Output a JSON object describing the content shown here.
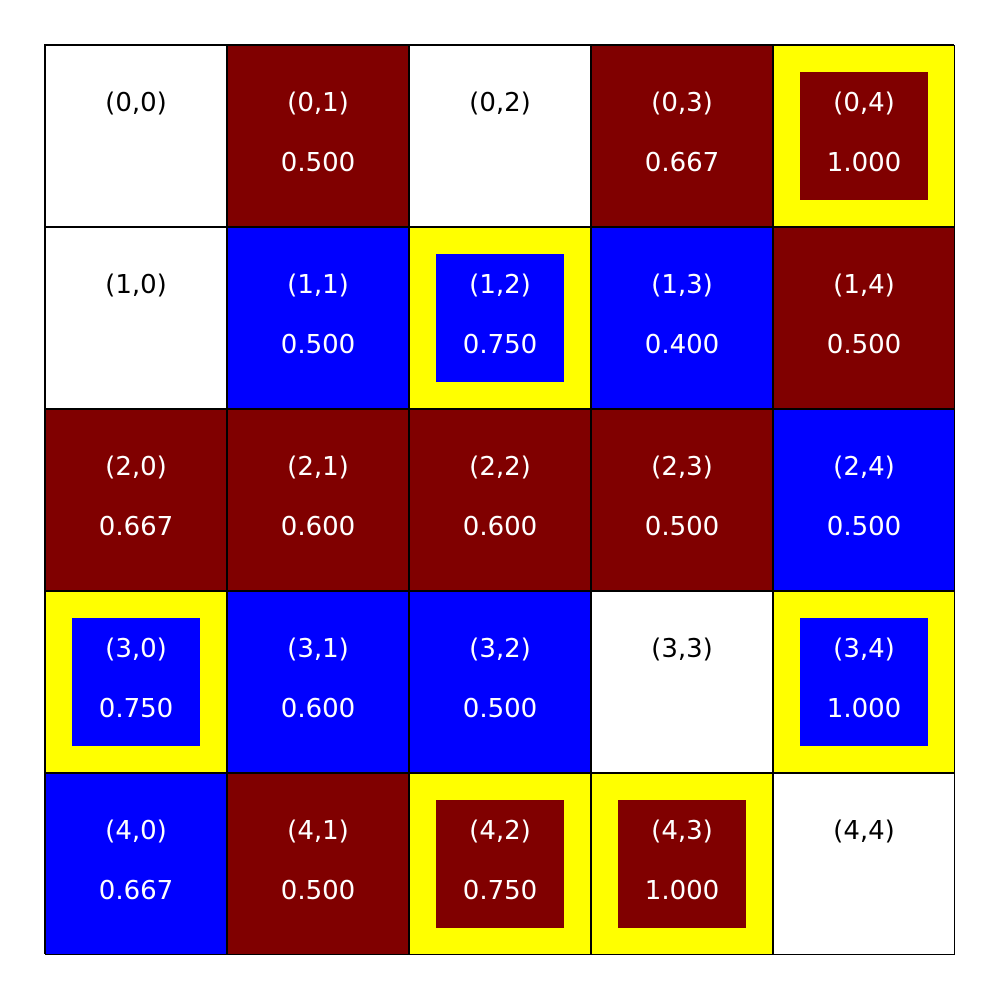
{
  "colors": {
    "white": "#ffffff",
    "red": "#800000",
    "blue": "#0000ff",
    "highlight": "#ffff00",
    "dark_text": "#000000",
    "light_text": "#ffffff"
  },
  "grid": [
    [
      {
        "coord": "(0,0)",
        "value": "",
        "color": "white",
        "highlight": false
      },
      {
        "coord": "(0,1)",
        "value": "0.500",
        "color": "red",
        "highlight": false
      },
      {
        "coord": "(0,2)",
        "value": "",
        "color": "white",
        "highlight": false
      },
      {
        "coord": "(0,3)",
        "value": "0.667",
        "color": "red",
        "highlight": false
      },
      {
        "coord": "(0,4)",
        "value": "1.000",
        "color": "red",
        "highlight": true
      }
    ],
    [
      {
        "coord": "(1,0)",
        "value": "",
        "color": "white",
        "highlight": false
      },
      {
        "coord": "(1,1)",
        "value": "0.500",
        "color": "blue",
        "highlight": false
      },
      {
        "coord": "(1,2)",
        "value": "0.750",
        "color": "blue",
        "highlight": true
      },
      {
        "coord": "(1,3)",
        "value": "0.400",
        "color": "blue",
        "highlight": false
      },
      {
        "coord": "(1,4)",
        "value": "0.500",
        "color": "red",
        "highlight": false
      }
    ],
    [
      {
        "coord": "(2,0)",
        "value": "0.667",
        "color": "red",
        "highlight": false
      },
      {
        "coord": "(2,1)",
        "value": "0.600",
        "color": "red",
        "highlight": false
      },
      {
        "coord": "(2,2)",
        "value": "0.600",
        "color": "red",
        "highlight": false
      },
      {
        "coord": "(2,3)",
        "value": "0.500",
        "color": "red",
        "highlight": false
      },
      {
        "coord": "(2,4)",
        "value": "0.500",
        "color": "blue",
        "highlight": false
      }
    ],
    [
      {
        "coord": "(3,0)",
        "value": "0.750",
        "color": "blue",
        "highlight": true
      },
      {
        "coord": "(3,1)",
        "value": "0.600",
        "color": "blue",
        "highlight": false
      },
      {
        "coord": "(3,2)",
        "value": "0.500",
        "color": "blue",
        "highlight": false
      },
      {
        "coord": "(3,3)",
        "value": "",
        "color": "white",
        "highlight": false
      },
      {
        "coord": "(3,4)",
        "value": "1.000",
        "color": "blue",
        "highlight": true
      }
    ],
    [
      {
        "coord": "(4,0)",
        "value": "0.667",
        "color": "blue",
        "highlight": false
      },
      {
        "coord": "(4,1)",
        "value": "0.500",
        "color": "red",
        "highlight": false
      },
      {
        "coord": "(4,2)",
        "value": "0.750",
        "color": "red",
        "highlight": true
      },
      {
        "coord": "(4,3)",
        "value": "1.000",
        "color": "red",
        "highlight": true
      },
      {
        "coord": "(4,4)",
        "value": "",
        "color": "white",
        "highlight": false
      }
    ]
  ]
}
